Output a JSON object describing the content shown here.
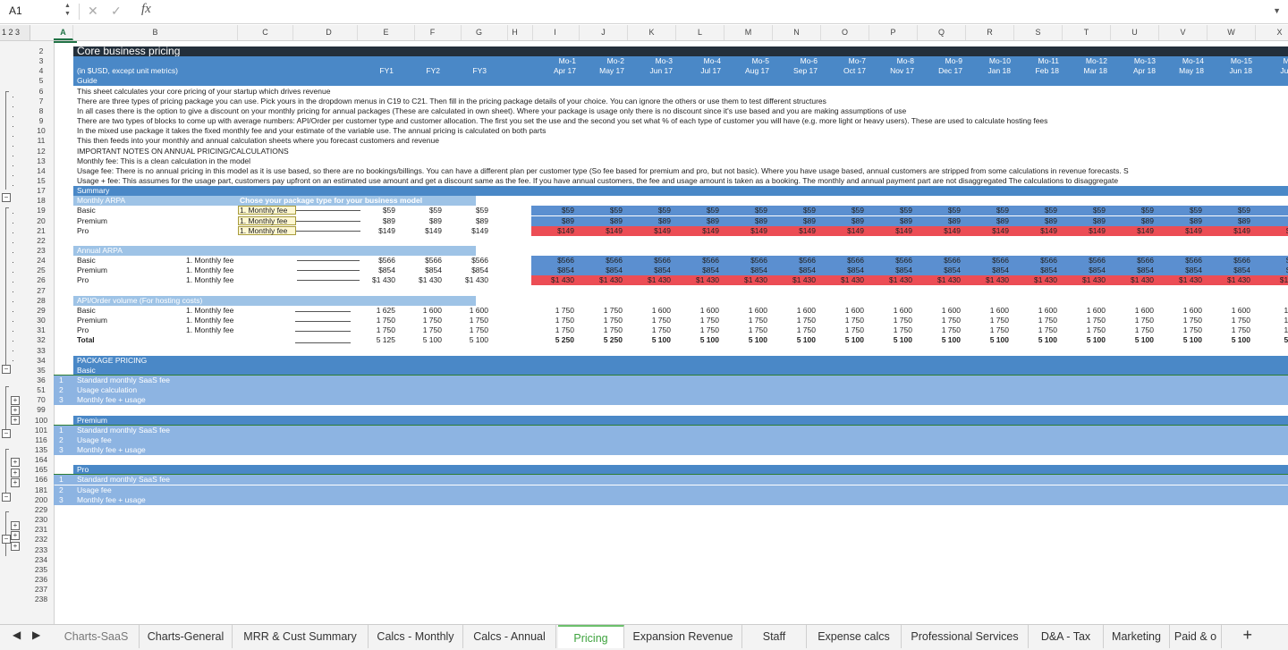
{
  "formula_bar": {
    "cell_ref": "A1",
    "fx": "fx"
  },
  "outline_levels": "1 2 3",
  "columns": [
    "A",
    "B",
    "C",
    "D",
    "E",
    "F",
    "G",
    "H",
    "I",
    "J",
    "K",
    "L",
    "M",
    "N",
    "O",
    "P",
    "Q",
    "R",
    "S",
    "T",
    "U",
    "V",
    "W",
    "X"
  ],
  "title": "Core business pricing",
  "units_label": "(in $USD, except unit metrics)",
  "fy_labels": [
    "FY1",
    "FY2",
    "FY3"
  ],
  "months": [
    {
      "m": "Mo-1",
      "d": "Apr 17"
    },
    {
      "m": "Mo-2",
      "d": "May 17"
    },
    {
      "m": "Mo-3",
      "d": "Jun 17"
    },
    {
      "m": "Mo-4",
      "d": "Jul 17"
    },
    {
      "m": "Mo-5",
      "d": "Aug 17"
    },
    {
      "m": "Mo-6",
      "d": "Sep 17"
    },
    {
      "m": "Mo-7",
      "d": "Oct 17"
    },
    {
      "m": "Mo-8",
      "d": "Nov 17"
    },
    {
      "m": "Mo-9",
      "d": "Dec 17"
    },
    {
      "m": "Mo-10",
      "d": "Jan 18"
    },
    {
      "m": "Mo-11",
      "d": "Feb 18"
    },
    {
      "m": "Mo-12",
      "d": "Mar 18"
    },
    {
      "m": "Mo-13",
      "d": "Apr 18"
    },
    {
      "m": "Mo-14",
      "d": "May 18"
    },
    {
      "m": "Mo-15",
      "d": "Jun 18"
    },
    {
      "m": "Mo-1",
      "d": "Jul 18"
    }
  ],
  "guide": {
    "header": "Guide",
    "lines": [
      "This sheet calculates your core pricing of your startup which drives revenue",
      "There are three types of pricing package you can use. Pick yours in the dropdown menus in C19 to C21. Then fill in the pricing package details of your choice. You can ignore the others or use them to test different structures",
      "In all cases there is the option to give a discount on your monthly pricing for annual packages (These are calculated in own sheet). Where your package is usage only there is no discount since it's use based and you are making assumptions of use",
      "There are two types of blocks to come up with average numbers: API/Order per customer type and customer allocation. The first you set the use and the second you set what % of each type of customer you will have (e.g. more light or heavy users). These are used to calculate hosting fees",
      "In the mixed use package it takes the fixed monthly fee and your estimate of the variable use. The annual pricing is calculated on both parts",
      "This then feeds into your monthly and annual calculation sheets where you forecast customers and revenue",
      "IMPORTANT NOTES ON ANNUAL PRICING/CALCULATIONS",
      "Monthly fee: This is a clean calculation in the model",
      "Usage fee: There is no annual pricing in this model as it is use based, so there are no bookings/billings. You can have a different plan per customer type (So fee based for premium and pro, but not basic). Where you have usage based, annual customers are stripped from some calculations in revenue forecasts. S",
      "Usage + fee: This assumes for the usage part, customers pay upfront on an estimated use amount and get a discount same as the fee. If you have annual customers, the fee and usage amount is taken as a booking. The monthly and annual payment part are not disaggregated The calculations to disaggregate"
    ]
  },
  "summary": {
    "header": "Summary",
    "monthly_arpa": {
      "label": "Monthly ARPA",
      "choose_label": "Chose your package type for your business model",
      "rows": [
        {
          "name": "Basic",
          "pkg": "1. Monthly fee",
          "fy": [
            "$59",
            "$59",
            "$59"
          ],
          "mo": "$59",
          "last": "$5"
        },
        {
          "name": "Premium",
          "pkg": "1. Monthly fee",
          "fy": [
            "$89",
            "$89",
            "$89"
          ],
          "mo": "$89",
          "last": "$8"
        },
        {
          "name": "Pro",
          "pkg": "1. Monthly fee",
          "fy": [
            "$149",
            "$149",
            "$149"
          ],
          "mo": "$149",
          "last": "$14"
        }
      ]
    },
    "annual_arpa": {
      "label": "Annual ARPA",
      "rows": [
        {
          "name": "Basic",
          "pkg": "1. Monthly fee",
          "fy": [
            "$566",
            "$566",
            "$566"
          ],
          "mo": "$566",
          "last": "$56"
        },
        {
          "name": "Premium",
          "pkg": "1. Monthly fee",
          "fy": [
            "$854",
            "$854",
            "$854"
          ],
          "mo": "$854",
          "last": "$85"
        },
        {
          "name": "Pro",
          "pkg": "1. Monthly fee",
          "fy": [
            "$1 430",
            "$1 430",
            "$1 430"
          ],
          "mo": "$1 430",
          "last": "$1 43"
        }
      ]
    },
    "api": {
      "label": "API/Order volume (For hosting costs)",
      "rows": [
        {
          "name": "Basic",
          "pkg": "1. Monthly fee",
          "fy": [
            "1 625",
            "1 600",
            "1 600"
          ],
          "mo": [
            "1 750",
            "1 750",
            "1 600",
            "1 600",
            "1 600",
            "1 600",
            "1 600",
            "1 600",
            "1 600",
            "1 600",
            "1 600",
            "1 600",
            "1 600",
            "1 600",
            "1 600",
            "1 60"
          ]
        },
        {
          "name": "Premium",
          "pkg": "1. Monthly fee",
          "fy": [
            "1 750",
            "1 750",
            "1 750"
          ],
          "mo": [
            "1 750",
            "1 750",
            "1 750",
            "1 750",
            "1 750",
            "1 750",
            "1 750",
            "1 750",
            "1 750",
            "1 750",
            "1 750",
            "1 750",
            "1 750",
            "1 750",
            "1 750",
            "1 75"
          ]
        },
        {
          "name": "Pro",
          "pkg": "1. Monthly fee",
          "fy": [
            "1 750",
            "1 750",
            "1 750"
          ],
          "mo": [
            "1 750",
            "1 750",
            "1 750",
            "1 750",
            "1 750",
            "1 750",
            "1 750",
            "1 750",
            "1 750",
            "1 750",
            "1 750",
            "1 750",
            "1 750",
            "1 750",
            "1 750",
            "1 75"
          ]
        },
        {
          "name": "Total",
          "pkg": "",
          "fy": [
            "5 125",
            "5 100",
            "5 100"
          ],
          "mo": [
            "5 250",
            "5 250",
            "5 100",
            "5 100",
            "5 100",
            "5 100",
            "5 100",
            "5 100",
            "5 100",
            "5 100",
            "5 100",
            "5 100",
            "5 100",
            "5 100",
            "5 100",
            "5 10"
          ]
        }
      ]
    }
  },
  "package_pricing": {
    "header": "PACKAGE PRICING",
    "groups": [
      {
        "name": "Basic",
        "rows": [
          {
            "n": "36",
            "i": "1",
            "t": "Standard monthly SaaS fee"
          },
          {
            "n": "51",
            "i": "2",
            "t": "Usage calculation"
          },
          {
            "n": "70",
            "i": "3",
            "t": "Monthly fee + usage"
          }
        ]
      },
      {
        "name": "Premium",
        "rows": [
          {
            "n": "101",
            "i": "1",
            "t": "Standard monthly SaaS fee"
          },
          {
            "n": "116",
            "i": "2",
            "t": "Usage fee"
          },
          {
            "n": "135",
            "i": "3",
            "t": "Monthly fee + usage"
          }
        ]
      },
      {
        "name": "Pro",
        "rows": [
          {
            "n": "166",
            "i": "1",
            "t": "Standard monthly SaaS fee"
          },
          {
            "n": "181",
            "i": "2",
            "t": "Usage fee"
          },
          {
            "n": "200",
            "i": "3",
            "t": "Monthly fee + usage"
          }
        ]
      }
    ]
  },
  "row_numbers": [
    "2",
    "3",
    "4",
    "5",
    "6",
    "7",
    "8",
    "9",
    "10",
    "11",
    "12",
    "13",
    "14",
    "15",
    "17",
    "18",
    "19",
    "20",
    "21",
    "22",
    "23",
    "24",
    "25",
    "26",
    "27",
    "28",
    "29",
    "30",
    "31",
    "32",
    "33",
    "34",
    "35",
    "36",
    "51",
    "70",
    "99",
    "100",
    "101",
    "116",
    "135",
    "164",
    "165",
    "166",
    "181",
    "200",
    "229",
    "230",
    "231",
    "232",
    "233",
    "234",
    "235",
    "236",
    "237",
    "238"
  ],
  "tabs": [
    "Charts-SaaS",
    "Charts-General",
    "MRR & Cust Summary",
    "Calcs - Monthly",
    "Calcs - Annual",
    "Pricing",
    "Expansion Revenue",
    "Staff",
    "Expense calcs",
    "Professional Services",
    "D&A - Tax",
    "Marketing",
    "Paid & o"
  ],
  "active_tab": "Pricing",
  "colors": {
    "dark": "#232f3b",
    "blue": "#4a88c7",
    "light_blue": "#9ec3e6",
    "red": "#ec4d55",
    "accent_green": "#207245"
  }
}
